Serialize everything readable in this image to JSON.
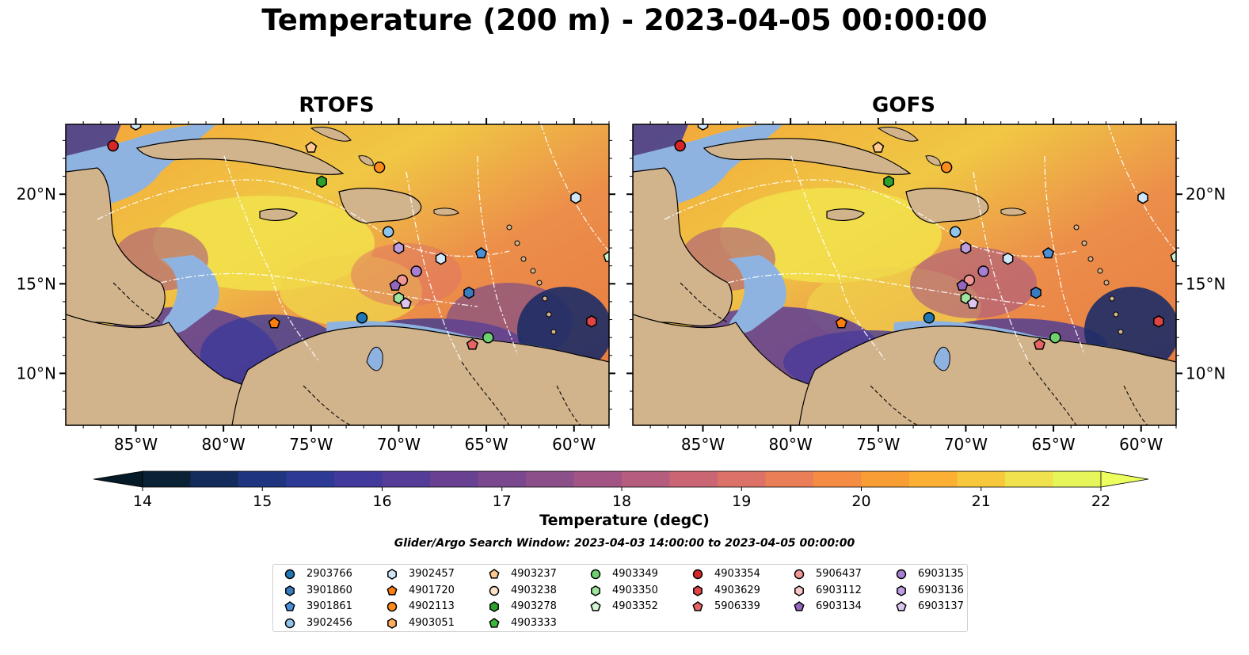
{
  "title": "Temperature (200 m) - 2023-04-05 00:00:00",
  "panels": [
    {
      "id": "rtofs",
      "title": "RTOFS"
    },
    {
      "id": "gofs",
      "title": "GOFS"
    }
  ],
  "axes": {
    "lon_ticks": [
      "85°W",
      "80°W",
      "75°W",
      "70°W",
      "65°W",
      "60°W"
    ],
    "lat_ticks": [
      "20°N",
      "15°N",
      "10°N"
    ]
  },
  "colorbar": {
    "label": "Temperature (degC)",
    "min": 14,
    "max": 22,
    "step": 0.5,
    "ticks": [
      "14",
      "15",
      "16",
      "17",
      "18",
      "19",
      "20",
      "21",
      "22"
    ],
    "colors": [
      "#0a2234",
      "#142c5c",
      "#1f357f",
      "#2c3a96",
      "#41399c",
      "#553c98",
      "#684193",
      "#7a488e",
      "#8d4f8a",
      "#a25585",
      "#b65c7e",
      "#ca6674",
      "#dc7167",
      "#ea7e57",
      "#f48c44",
      "#f99d35",
      "#fbb033",
      "#f7c83c",
      "#f0e24d",
      "#e6f55a"
    ],
    "under_color": "#041a26",
    "over_color": "#ecff5f"
  },
  "map_colors": {
    "land": "#d2b48c",
    "shelf": "#8fb3e0",
    "deep": "#0a2234"
  },
  "search_window": "Glider/Argo Search Window: 2023-04-03 14:00:00 to 2023-04-05 00:00:00",
  "legend": [
    {
      "label": "2903766",
      "marker": "circle",
      "color": "#1f77b4"
    },
    {
      "label": "3901860",
      "marker": "hexagon",
      "color": "#3a7cc0"
    },
    {
      "label": "3901861",
      "marker": "pentagon",
      "color": "#4a90d9"
    },
    {
      "label": "3902456",
      "marker": "circle",
      "color": "#8fc4ec"
    },
    {
      "label": "3902457",
      "marker": "hexagon",
      "color": "#cfe6f8"
    },
    {
      "label": "4901720",
      "marker": "pentagon",
      "color": "#ff7f0e"
    },
    {
      "label": "4902113",
      "marker": "circle",
      "color": "#ff8c1a"
    },
    {
      "label": "4903051",
      "marker": "hexagon",
      "color": "#ffad5c"
    },
    {
      "label": "4903237",
      "marker": "pentagon",
      "color": "#ffc98f"
    },
    {
      "label": "4903238",
      "marker": "circle",
      "color": "#ffe3c7"
    },
    {
      "label": "4903278",
      "marker": "hexagon",
      "color": "#2ca02c"
    },
    {
      "label": "4903333",
      "marker": "pentagon",
      "color": "#3cb93c"
    },
    {
      "label": "4903349",
      "marker": "circle",
      "color": "#6fd06f"
    },
    {
      "label": "4903350",
      "marker": "hexagon",
      "color": "#9fe39f"
    },
    {
      "label": "4903352",
      "marker": "pentagon",
      "color": "#d3f5d3"
    },
    {
      "label": "4903354",
      "marker": "circle",
      "color": "#d62728"
    },
    {
      "label": "4903629",
      "marker": "hexagon",
      "color": "#e04444"
    },
    {
      "label": "5906339",
      "marker": "pentagon",
      "color": "#e86363"
    },
    {
      "label": "5906437",
      "marker": "circle",
      "color": "#f19595"
    },
    {
      "label": "6903112",
      "marker": "hexagon",
      "color": "#f8c8c8"
    },
    {
      "label": "6903134",
      "marker": "pentagon",
      "color": "#9467bd"
    },
    {
      "label": "6903135",
      "marker": "circle",
      "color": "#a77fd0"
    },
    {
      "label": "6903136",
      "marker": "hexagon",
      "color": "#bf9ee0"
    },
    {
      "label": "6903137",
      "marker": "pentagon",
      "color": "#dcc6f0"
    }
  ],
  "floats": [
    {
      "id": "4903354",
      "lon": -86.3,
      "lat": 22.7
    },
    {
      "id": "3902457",
      "lon": -85.0,
      "lat": 23.9
    },
    {
      "id": "4903237",
      "lon": -75.0,
      "lat": 22.6
    },
    {
      "id": "4902113",
      "lon": -71.1,
      "lat": 21.5
    },
    {
      "id": "4903278",
      "lon": -74.4,
      "lat": 20.7
    },
    {
      "id": "3902456",
      "lon": -70.6,
      "lat": 17.9
    },
    {
      "id": "6903136",
      "lon": -70.0,
      "lat": 17.0
    },
    {
      "id": "3902457",
      "lon": -67.6,
      "lat": 16.4
    },
    {
      "id": "3901861",
      "lon": -65.3,
      "lat": 16.7
    },
    {
      "id": "6903135",
      "lon": -69.0,
      "lat": 15.7
    },
    {
      "id": "5906437",
      "lon": -69.8,
      "lat": 15.2
    },
    {
      "id": "6903134",
      "lon": -70.2,
      "lat": 14.9
    },
    {
      "id": "4903350",
      "lon": -70.0,
      "lat": 14.2
    },
    {
      "id": "6903137",
      "lon": -69.6,
      "lat": 13.9
    },
    {
      "id": "3901860",
      "lon": -66.0,
      "lat": 14.5
    },
    {
      "id": "2903766",
      "lon": -72.1,
      "lat": 13.1
    },
    {
      "id": "4901720",
      "lon": -77.1,
      "lat": 12.8
    },
    {
      "id": "4903349",
      "lon": -64.9,
      "lat": 12.0
    },
    {
      "id": "5906339",
      "lon": -65.8,
      "lat": 11.6
    },
    {
      "id": "4903629",
      "lon": -59.0,
      "lat": 12.9
    },
    {
      "id": "3902457",
      "lon": -59.9,
      "lat": 19.8
    },
    {
      "id": "4903352",
      "lon": -58.0,
      "lat": 16.5
    }
  ]
}
